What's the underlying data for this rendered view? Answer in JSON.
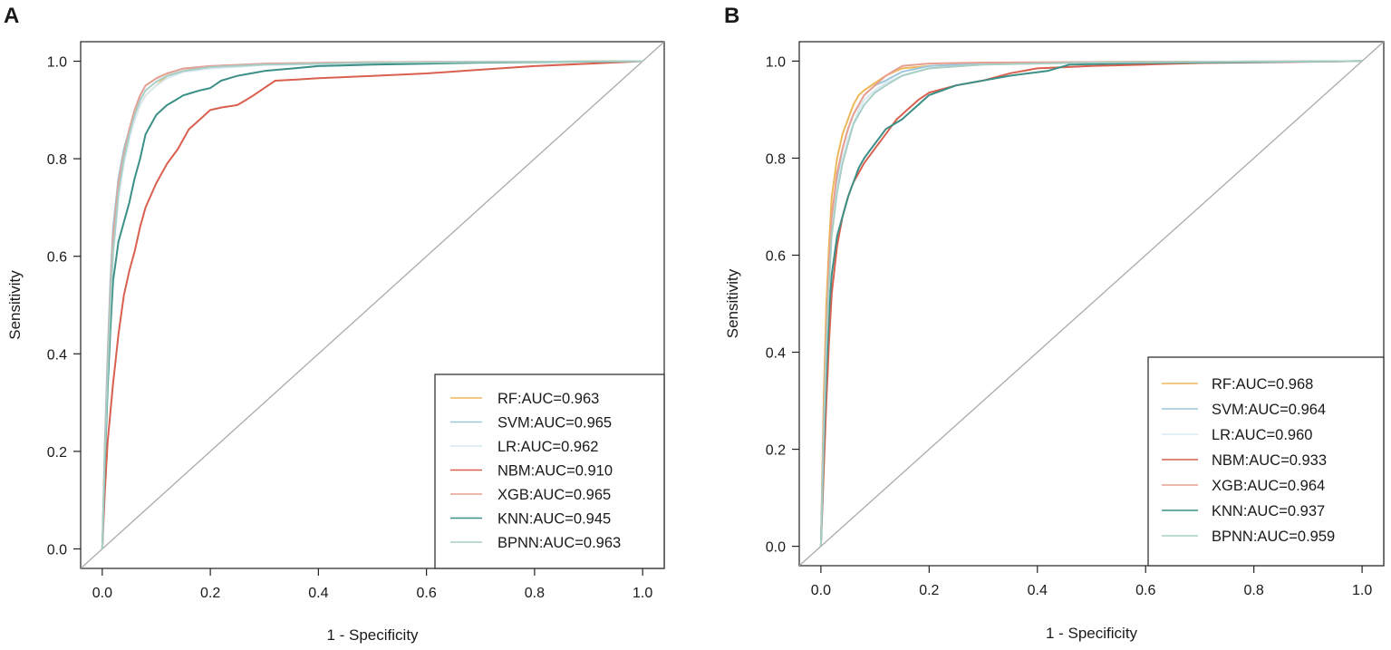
{
  "chart_data": [
    {
      "panel": "A",
      "type": "line",
      "title": "",
      "xlabel": "1 - Specificity",
      "ylabel": "Sensitivity",
      "xlim": [
        -0.04,
        1.04
      ],
      "ylim": [
        -0.04,
        1.04
      ],
      "xticks": [
        0.0,
        0.2,
        0.4,
        0.6,
        0.8,
        1.0
      ],
      "xtick_labels": [
        "0.0",
        "0.2",
        "0.4",
        "0.6",
        "0.8",
        "1.0"
      ],
      "yticks": [
        0.0,
        0.2,
        0.4,
        0.6,
        0.8,
        1.0
      ],
      "ytick_labels": [
        "0.0",
        "0.2",
        "0.4",
        "0.6",
        "0.8",
        "1.0"
      ],
      "legend_position": "bottom-right",
      "reference_line": {
        "x": [
          -0.04,
          1.04
        ],
        "y": [
          -0.04,
          1.04
        ],
        "color": "#aaaaaa"
      },
      "series": [
        {
          "name": "RF:AUC=0.963",
          "color": "#EDB85A",
          "x": [
            0,
            0.005,
            0.01,
            0.015,
            0.02,
            0.03,
            0.04,
            0.05,
            0.06,
            0.07,
            0.08,
            0.1,
            0.12,
            0.15,
            0.2,
            0.3,
            0.5,
            0.8,
            1.0
          ],
          "y": [
            0,
            0.2,
            0.36,
            0.5,
            0.62,
            0.73,
            0.8,
            0.85,
            0.88,
            0.91,
            0.93,
            0.95,
            0.97,
            0.98,
            0.988,
            0.993,
            0.997,
            0.999,
            1.0
          ]
        },
        {
          "name": "SVM:AUC=0.965",
          "color": "#9CC7DC",
          "x": [
            0,
            0.005,
            0.01,
            0.015,
            0.02,
            0.03,
            0.04,
            0.05,
            0.06,
            0.07,
            0.08,
            0.1,
            0.12,
            0.15,
            0.2,
            0.3,
            0.5,
            0.8,
            1.0
          ],
          "y": [
            0,
            0.22,
            0.4,
            0.55,
            0.66,
            0.76,
            0.82,
            0.86,
            0.9,
            0.93,
            0.95,
            0.965,
            0.975,
            0.985,
            0.99,
            0.995,
            0.998,
            0.999,
            1.0
          ]
        },
        {
          "name": "LR:AUC=0.962",
          "color": "#D9E9F2",
          "x": [
            0,
            0.005,
            0.01,
            0.015,
            0.02,
            0.03,
            0.04,
            0.05,
            0.06,
            0.07,
            0.08,
            0.1,
            0.12,
            0.15,
            0.2,
            0.3,
            0.5,
            0.8,
            1.0
          ],
          "y": [
            0,
            0.2,
            0.35,
            0.5,
            0.6,
            0.72,
            0.79,
            0.84,
            0.88,
            0.91,
            0.93,
            0.95,
            0.965,
            0.978,
            0.985,
            0.992,
            0.996,
            0.999,
            1.0
          ]
        },
        {
          "name": "NBM:AUC=0.910",
          "color": "#D9604E",
          "x": [
            0,
            0.005,
            0.01,
            0.02,
            0.03,
            0.04,
            0.05,
            0.06,
            0.07,
            0.08,
            0.1,
            0.12,
            0.14,
            0.16,
            0.18,
            0.2,
            0.22,
            0.25,
            0.28,
            0.32,
            0.4,
            0.6,
            0.8,
            1.0
          ],
          "y": [
            0,
            0.12,
            0.22,
            0.34,
            0.44,
            0.52,
            0.57,
            0.61,
            0.66,
            0.7,
            0.75,
            0.79,
            0.82,
            0.86,
            0.88,
            0.9,
            0.905,
            0.91,
            0.93,
            0.96,
            0.965,
            0.975,
            0.99,
            1.0
          ]
        },
        {
          "name": "XGB:AUC=0.965",
          "color": "#E89F92",
          "x": [
            0,
            0.005,
            0.01,
            0.015,
            0.02,
            0.03,
            0.04,
            0.05,
            0.06,
            0.07,
            0.08,
            0.1,
            0.12,
            0.15,
            0.2,
            0.3,
            0.5,
            0.8,
            1.0
          ],
          "y": [
            0,
            0.21,
            0.38,
            0.52,
            0.64,
            0.75,
            0.81,
            0.86,
            0.9,
            0.93,
            0.95,
            0.965,
            0.975,
            0.985,
            0.99,
            0.995,
            0.998,
            0.999,
            1.0
          ]
        },
        {
          "name": "KNN:AUC=0.945",
          "color": "#3B8F86",
          "x": [
            0,
            0.005,
            0.01,
            0.015,
            0.02,
            0.03,
            0.04,
            0.05,
            0.06,
            0.07,
            0.08,
            0.1,
            0.12,
            0.15,
            0.18,
            0.2,
            0.22,
            0.25,
            0.3,
            0.35,
            0.4,
            0.5,
            0.7,
            1.0
          ],
          "y": [
            0,
            0.18,
            0.33,
            0.45,
            0.55,
            0.63,
            0.67,
            0.71,
            0.76,
            0.8,
            0.85,
            0.89,
            0.91,
            0.93,
            0.94,
            0.945,
            0.96,
            0.97,
            0.98,
            0.985,
            0.99,
            0.993,
            0.997,
            1.0
          ]
        },
        {
          "name": "BPNN:AUC=0.963",
          "color": "#A7CFC6",
          "x": [
            0,
            0.005,
            0.01,
            0.015,
            0.02,
            0.03,
            0.04,
            0.05,
            0.06,
            0.07,
            0.08,
            0.1,
            0.12,
            0.15,
            0.2,
            0.3,
            0.5,
            0.8,
            1.0
          ],
          "y": [
            0,
            0.2,
            0.36,
            0.5,
            0.61,
            0.73,
            0.8,
            0.85,
            0.89,
            0.92,
            0.94,
            0.958,
            0.97,
            0.98,
            0.988,
            0.993,
            0.997,
            0.999,
            1.0
          ]
        }
      ]
    },
    {
      "panel": "B",
      "type": "line",
      "title": "",
      "xlabel": "1 - Specificity",
      "ylabel": "Sensitivity",
      "xlim": [
        -0.04,
        1.04
      ],
      "ylim": [
        -0.04,
        1.04
      ],
      "xticks": [
        0.0,
        0.2,
        0.4,
        0.6,
        0.8,
        1.0
      ],
      "xtick_labels": [
        "0.0",
        "0.2",
        "0.4",
        "0.6",
        "0.8",
        "1.0"
      ],
      "yticks": [
        0.0,
        0.2,
        0.4,
        0.6,
        0.8,
        1.0
      ],
      "ytick_labels": [
        "0.0",
        "0.2",
        "0.4",
        "0.6",
        "0.8",
        "1.0"
      ],
      "legend_position": "bottom-right",
      "reference_line": {
        "x": [
          -0.04,
          1.04
        ],
        "y": [
          -0.04,
          1.04
        ],
        "color": "#aaaaaa"
      },
      "series": [
        {
          "name": "RF:AUC=0.968",
          "color": "#EDB85A",
          "x": [
            0,
            0.005,
            0.01,
            0.015,
            0.02,
            0.03,
            0.04,
            0.05,
            0.06,
            0.07,
            0.08,
            0.1,
            0.12,
            0.15,
            0.2,
            0.3,
            0.5,
            0.8,
            1.0
          ],
          "y": [
            0,
            0.3,
            0.5,
            0.62,
            0.72,
            0.8,
            0.85,
            0.88,
            0.91,
            0.93,
            0.94,
            0.955,
            0.97,
            0.985,
            0.99,
            0.995,
            0.998,
            0.999,
            1.0
          ]
        },
        {
          "name": "SVM:AUC=0.964",
          "color": "#9CC7DC",
          "x": [
            0,
            0.005,
            0.01,
            0.015,
            0.02,
            0.03,
            0.04,
            0.05,
            0.06,
            0.07,
            0.08,
            0.1,
            0.12,
            0.15,
            0.2,
            0.3,
            0.5,
            0.8,
            1.0
          ],
          "y": [
            0,
            0.25,
            0.44,
            0.57,
            0.67,
            0.76,
            0.82,
            0.86,
            0.89,
            0.91,
            0.93,
            0.95,
            0.96,
            0.978,
            0.99,
            0.995,
            0.998,
            0.999,
            1.0
          ]
        },
        {
          "name": "LR:AUC=0.960",
          "color": "#D9E9F2",
          "x": [
            0,
            0.005,
            0.01,
            0.015,
            0.02,
            0.03,
            0.04,
            0.05,
            0.06,
            0.07,
            0.08,
            0.1,
            0.12,
            0.15,
            0.2,
            0.3,
            0.5,
            0.8,
            1.0
          ],
          "y": [
            0,
            0.24,
            0.42,
            0.55,
            0.65,
            0.74,
            0.8,
            0.84,
            0.87,
            0.9,
            0.92,
            0.94,
            0.955,
            0.97,
            0.985,
            0.993,
            0.997,
            0.999,
            1.0
          ]
        },
        {
          "name": "NBM:AUC=0.933",
          "color": "#D9604E",
          "x": [
            0,
            0.005,
            0.01,
            0.015,
            0.02,
            0.03,
            0.04,
            0.05,
            0.06,
            0.07,
            0.08,
            0.1,
            0.12,
            0.14,
            0.16,
            0.18,
            0.2,
            0.25,
            0.3,
            0.35,
            0.4,
            0.5,
            0.7,
            1.0
          ],
          "y": [
            0,
            0.15,
            0.3,
            0.42,
            0.52,
            0.62,
            0.68,
            0.72,
            0.75,
            0.77,
            0.79,
            0.82,
            0.85,
            0.88,
            0.9,
            0.92,
            0.935,
            0.95,
            0.96,
            0.975,
            0.985,
            0.99,
            0.996,
            1.0
          ]
        },
        {
          "name": "XGB:AUC=0.964",
          "color": "#E89F92",
          "x": [
            0,
            0.005,
            0.01,
            0.015,
            0.02,
            0.03,
            0.04,
            0.05,
            0.06,
            0.07,
            0.08,
            0.1,
            0.12,
            0.15,
            0.2,
            0.3,
            0.5,
            0.8,
            1.0
          ],
          "y": [
            0,
            0.26,
            0.45,
            0.58,
            0.68,
            0.77,
            0.82,
            0.86,
            0.89,
            0.91,
            0.93,
            0.95,
            0.97,
            0.99,
            0.995,
            0.997,
            0.998,
            0.999,
            1.0
          ]
        },
        {
          "name": "KNN:AUC=0.937",
          "color": "#3B8F86",
          "x": [
            0,
            0.005,
            0.01,
            0.015,
            0.02,
            0.03,
            0.04,
            0.05,
            0.06,
            0.07,
            0.08,
            0.1,
            0.12,
            0.15,
            0.17,
            0.2,
            0.25,
            0.3,
            0.35,
            0.42,
            0.46,
            0.6,
            0.8,
            1.0
          ],
          "y": [
            0,
            0.2,
            0.36,
            0.48,
            0.56,
            0.64,
            0.68,
            0.72,
            0.75,
            0.78,
            0.8,
            0.83,
            0.86,
            0.88,
            0.9,
            0.93,
            0.95,
            0.96,
            0.97,
            0.98,
            0.993,
            0.996,
            0.998,
            1.0
          ]
        },
        {
          "name": "BPNN:AUC=0.959",
          "color": "#A7CFC6",
          "x": [
            0,
            0.005,
            0.01,
            0.015,
            0.02,
            0.03,
            0.04,
            0.05,
            0.06,
            0.07,
            0.08,
            0.1,
            0.12,
            0.15,
            0.2,
            0.3,
            0.5,
            0.8,
            1.0
          ],
          "y": [
            0,
            0.23,
            0.41,
            0.54,
            0.64,
            0.73,
            0.79,
            0.83,
            0.87,
            0.89,
            0.91,
            0.935,
            0.95,
            0.97,
            0.985,
            0.993,
            0.997,
            0.999,
            1.0
          ]
        }
      ]
    }
  ]
}
